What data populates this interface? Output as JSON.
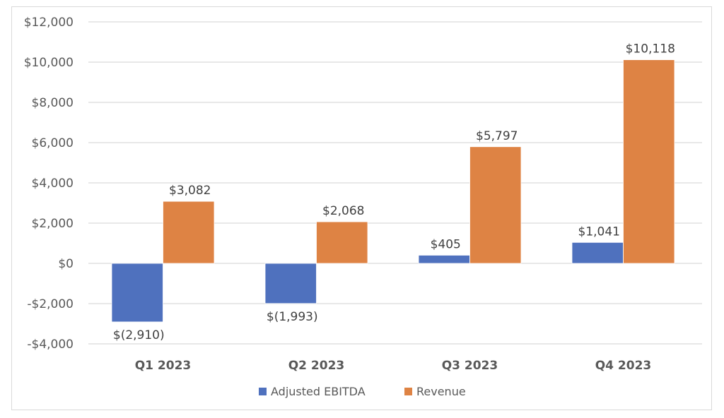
{
  "chart_data": {
    "type": "bar",
    "title": "",
    "xlabel": "",
    "ylabel": "",
    "categories": [
      "Q1 2023",
      "Q2 2023",
      "Q3 2023",
      "Q4 2023"
    ],
    "series": [
      {
        "name": "Adjusted EBITDA",
        "color": "#4f71be",
        "values": [
          -2910,
          -1993,
          405,
          1041
        ],
        "labels": [
          "$(2,910)",
          "$(1,993)",
          "$405",
          "$1,041"
        ]
      },
      {
        "name": "Revenue",
        "color": "#de8344",
        "values": [
          3082,
          2068,
          5797,
          10118
        ],
        "labels": [
          "$3,082",
          "$2,068",
          "$5,797",
          "$10,118"
        ]
      }
    ],
    "ylim": [
      -4000,
      12000
    ],
    "yticks": [
      12000,
      10000,
      8000,
      6000,
      4000,
      2000,
      0,
      -2000,
      -4000
    ],
    "ytick_labels": [
      "$12,000",
      "$10,000",
      "$8,000",
      "$6,000",
      "$4,000",
      "$2,000",
      "$0",
      "-$2,000",
      "-$4,000"
    ],
    "grid": true,
    "legend": {
      "position": "bottom",
      "entries": [
        "Adjusted EBITDA",
        "Revenue"
      ]
    }
  }
}
